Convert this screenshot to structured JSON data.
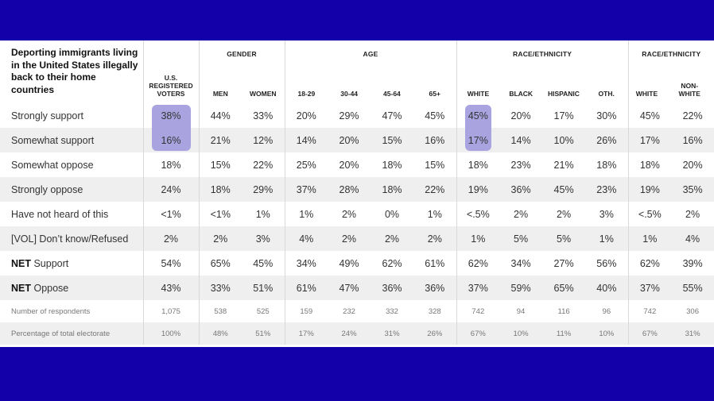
{
  "title": "Deporting immigrants living in the United States illegally back to their home countries",
  "headers": {
    "voters": "U.S. REGISTERED VOTERS",
    "gender": {
      "group": "GENDER",
      "cols": [
        "MEN",
        "WOMEN"
      ]
    },
    "age": {
      "group": "AGE",
      "cols": [
        "18-29",
        "30-44",
        "45-64",
        "65+"
      ]
    },
    "race1": {
      "group": "RACE/ETHNICITY",
      "cols": [
        "WHITE",
        "BLACK",
        "HISPANIC",
        "OTH."
      ]
    },
    "race2": {
      "group": "RACE/ETHNICITY",
      "cols": [
        "WHITE",
        "NON-WHITE"
      ]
    }
  },
  "rows": [
    {
      "prefix": "",
      "label": "Strongly support",
      "values": [
        "38%",
        "44%",
        "33%",
        "20%",
        "29%",
        "47%",
        "45%",
        "45%",
        "20%",
        "17%",
        "30%",
        "45%",
        "22%"
      ]
    },
    {
      "prefix": "",
      "label": "Somewhat support",
      "values": [
        "16%",
        "21%",
        "12%",
        "14%",
        "20%",
        "15%",
        "16%",
        "17%",
        "14%",
        "10%",
        "26%",
        "17%",
        "16%"
      ]
    },
    {
      "prefix": "",
      "label": "Somewhat oppose",
      "values": [
        "18%",
        "15%",
        "22%",
        "25%",
        "20%",
        "18%",
        "15%",
        "18%",
        "23%",
        "21%",
        "18%",
        "18%",
        "20%"
      ]
    },
    {
      "prefix": "",
      "label": "Strongly oppose",
      "values": [
        "24%",
        "18%",
        "29%",
        "37%",
        "28%",
        "18%",
        "22%",
        "19%",
        "36%",
        "45%",
        "23%",
        "19%",
        "35%"
      ]
    },
    {
      "prefix": "",
      "label": "Have not heard of this",
      "values": [
        "<1%",
        "<1%",
        "1%",
        "1%",
        "2%",
        "0%",
        "1%",
        "<.5%",
        "2%",
        "2%",
        "3%",
        "<.5%",
        "2%"
      ]
    },
    {
      "prefix": "",
      "label": "[VOL] Don’t know/Refused",
      "values": [
        "2%",
        "2%",
        "3%",
        "4%",
        "2%",
        "2%",
        "2%",
        "1%",
        "5%",
        "5%",
        "1%",
        "1%",
        "4%"
      ]
    },
    {
      "prefix": "NET",
      "label": " Support",
      "values": [
        "54%",
        "65%",
        "45%",
        "34%",
        "49%",
        "62%",
        "61%",
        "62%",
        "34%",
        "27%",
        "56%",
        "62%",
        "39%"
      ]
    },
    {
      "prefix": "NET",
      "label": " Oppose",
      "values": [
        "43%",
        "33%",
        "51%",
        "61%",
        "47%",
        "36%",
        "36%",
        "37%",
        "59%",
        "65%",
        "40%",
        "37%",
        "55%"
      ]
    },
    {
      "prefix": "",
      "label": "Number of respondents",
      "values": [
        "1,075",
        "538",
        "525",
        "159",
        "232",
        "332",
        "328",
        "742",
        "94",
        "116",
        "96",
        "742",
        "306"
      ]
    },
    {
      "prefix": "",
      "label": "Percentage of total electorate",
      "values": [
        "100%",
        "48%",
        "51%",
        "17%",
        "24%",
        "31%",
        "26%",
        "67%",
        "10%",
        "11%",
        "10%",
        "67%",
        "31%"
      ]
    }
  ],
  "colors": {
    "frame": "#1400a8",
    "highlight": "#a9a4e0",
    "stripe": "#efefef"
  }
}
